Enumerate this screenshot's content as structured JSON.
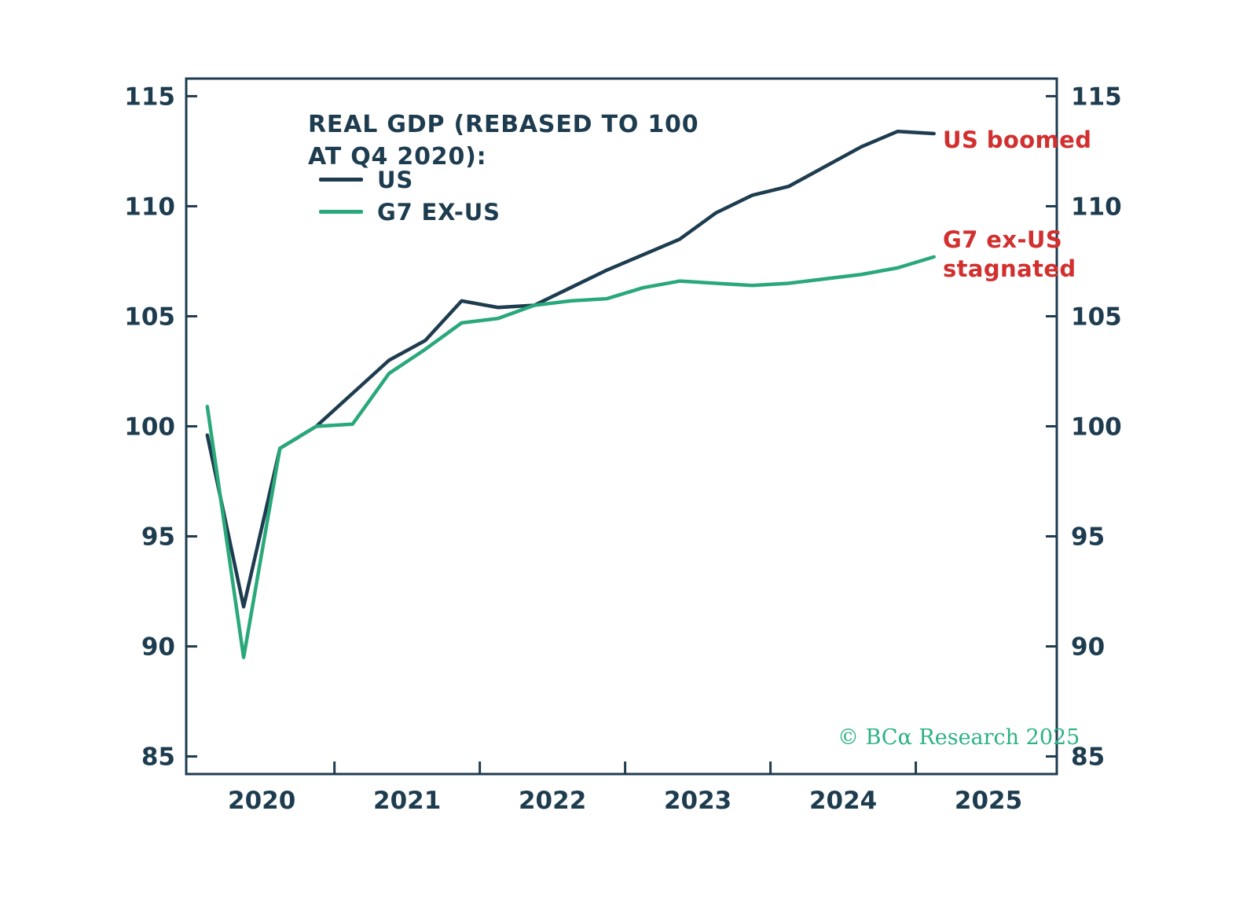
{
  "chart_data": {
    "type": "line",
    "title_line1": "REAL GDP (REBASED TO 100",
    "title_line2": "AT Q4 2020):",
    "x_quarters": [
      "2020Q1",
      "2020Q2",
      "2020Q3",
      "2020Q4",
      "2021Q1",
      "2021Q2",
      "2021Q3",
      "2021Q4",
      "2022Q1",
      "2022Q2",
      "2022Q3",
      "2022Q4",
      "2023Q1",
      "2023Q2",
      "2023Q3",
      "2023Q4",
      "2024Q1",
      "2024Q2",
      "2024Q3",
      "2024Q4",
      "2025Q1"
    ],
    "series": [
      {
        "name": "US",
        "color": "#1e3c4f",
        "values": [
          99.6,
          91.8,
          99.0,
          100.0,
          101.5,
          103.0,
          103.9,
          105.7,
          105.4,
          105.5,
          106.3,
          107.1,
          107.8,
          108.5,
          109.7,
          110.5,
          110.9,
          111.8,
          112.7,
          113.4,
          113.3
        ]
      },
      {
        "name": "G7 EX-US",
        "color": "#29a87a",
        "values": [
          100.9,
          89.5,
          99.0,
          100.0,
          100.1,
          102.4,
          103.5,
          104.7,
          104.9,
          105.5,
          105.7,
          105.8,
          106.3,
          106.6,
          106.5,
          106.4,
          106.5,
          106.7,
          106.9,
          107.2,
          107.7
        ]
      }
    ],
    "y_ticks": [
      85,
      90,
      95,
      100,
      105,
      110,
      115
    ],
    "x_labels": [
      "2020",
      "2021",
      "2022",
      "2023",
      "2024",
      "2025"
    ],
    "x_label_positions": [
      2020.5,
      2021.5,
      2022.5,
      2023.5,
      2024.5,
      2025.5
    ],
    "x_tick_years": [
      2021,
      2022,
      2023,
      2024,
      2025
    ],
    "ylim": [
      84.2,
      115.8
    ],
    "xlim": [
      2019.98,
      2025.97
    ],
    "grid": false,
    "legend_position": "top-left-inside"
  },
  "annotations": {
    "us_boomed": "US boomed",
    "g7_line1": "G7 ex-US",
    "g7_line2": "stagnated",
    "color": "#d22f2f"
  },
  "footer": {
    "copyright": "© BCα Research 2025",
    "color": "#2bb184"
  },
  "axis_color": "#1e3c4f"
}
